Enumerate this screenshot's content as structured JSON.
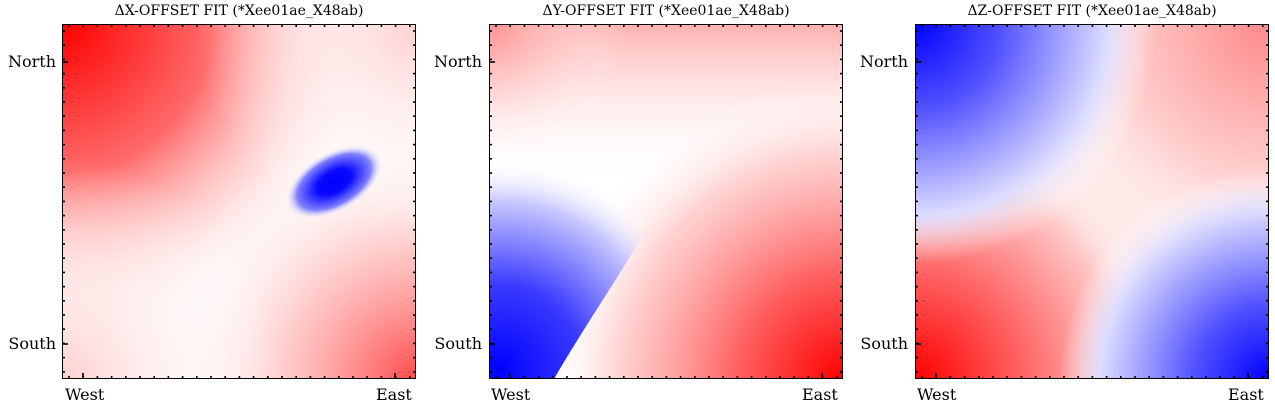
{
  "chart_data": [
    {
      "type": "heatmap",
      "title": "ΔX-OFFSET FIT (*Xee01ae_X48ab)",
      "x_ticks": [
        "West",
        "East"
      ],
      "y_ticks": [
        "North",
        "South"
      ],
      "colormap": [
        "#0000ff",
        "#ffffff",
        "#ff0000"
      ],
      "features": [
        {
          "kind": "background",
          "sign": 1,
          "gradient": "red at top-left corner fading to white at center, pink toward bottom-right"
        },
        {
          "kind": "blob",
          "sign": -1,
          "location": "right of center, upper half",
          "shape": "tilted ellipse"
        }
      ]
    },
    {
      "type": "heatmap",
      "title": "ΔY-OFFSET FIT (*Xee01ae_X48ab)",
      "x_ticks": [
        "West",
        "East"
      ],
      "y_ticks": [
        "North",
        "South"
      ],
      "colormap": [
        "#0000ff",
        "#ffffff",
        "#ff0000"
      ],
      "features": [
        {
          "kind": "background",
          "sign": 1,
          "gradient": "pink at top, red at bottom-right corner"
        },
        {
          "kind": "lobe",
          "sign": -1,
          "location": "bottom-left",
          "shape": "large lobe extending toward center"
        }
      ]
    },
    {
      "type": "heatmap",
      "title": "ΔZ-OFFSET FIT (*Xee01ae_X48ab)",
      "x_ticks": [
        "West",
        "East"
      ],
      "y_ticks": [
        "North",
        "South"
      ],
      "colormap": [
        "#0000ff",
        "#ffffff",
        "#ff0000"
      ],
      "features": [
        {
          "kind": "corner",
          "sign": -1,
          "location": "top-left"
        },
        {
          "kind": "corner",
          "sign": -1,
          "location": "bottom-right"
        },
        {
          "kind": "corner",
          "sign": 1,
          "location": "bottom-left"
        },
        {
          "kind": "corner",
          "sign": 1,
          "location": "top-right"
        }
      ]
    }
  ]
}
